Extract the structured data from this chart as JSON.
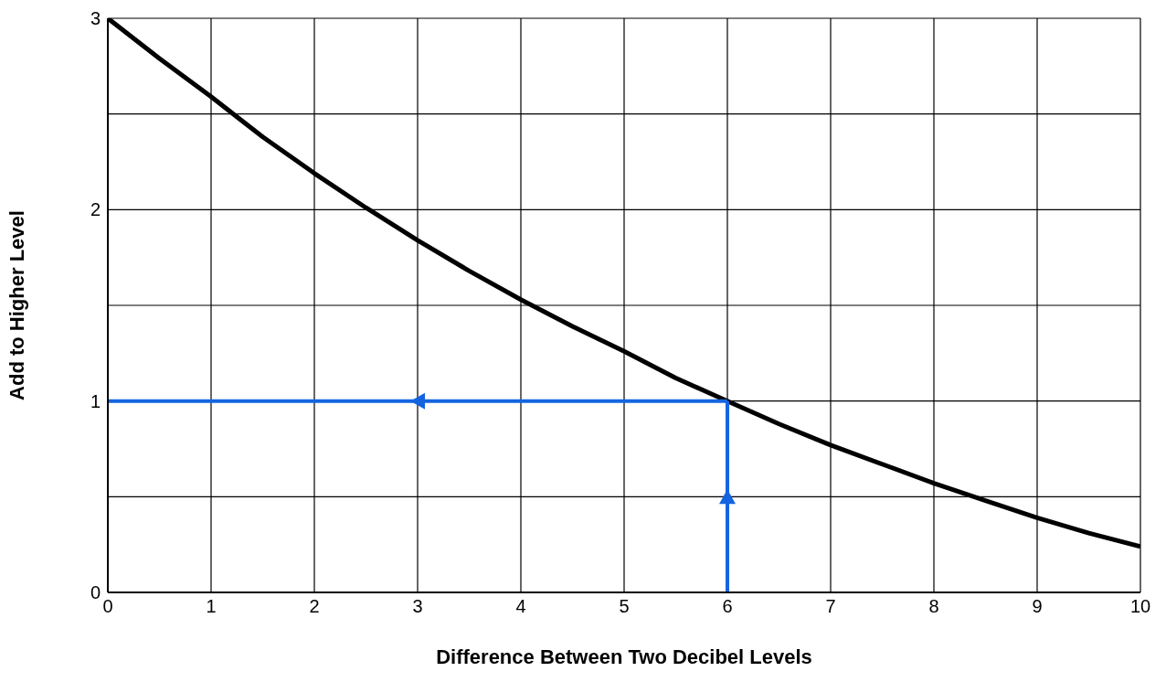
{
  "chart_data": {
    "type": "line",
    "xlabel": "Difference Between Two Decibel Levels",
    "ylabel": "Add to Higher Level",
    "xlim": [
      0,
      10
    ],
    "ylim": [
      0,
      3
    ],
    "xticks": [
      0,
      1,
      2,
      3,
      4,
      5,
      6,
      7,
      8,
      9,
      10
    ],
    "yticks": [
      0,
      {
        "value": 0.5,
        "label": null
      },
      1,
      {
        "value": 1.5,
        "label": null
      },
      2,
      {
        "value": 2.5,
        "label": null
      },
      3
    ],
    "grid": true,
    "marker": "none",
    "line_style": "solid",
    "series": [
      {
        "color": "#000000",
        "x": [
          0,
          0.5,
          1,
          1.5,
          2,
          2.5,
          3,
          3.5,
          4,
          4.5,
          5,
          5.5,
          6,
          6.5,
          7,
          7.5,
          8,
          8.5,
          9,
          9.5,
          10
        ],
        "values": [
          3,
          2.79,
          2.59,
          2.38,
          2.19,
          2.01,
          1.84,
          1.68,
          1.53,
          1.39,
          1.26,
          1.12,
          1,
          0.88,
          0.77,
          0.67,
          0.57,
          0.48,
          0.39,
          0.31,
          0.24
        ]
      },
      {
        "color": "#1464e0",
        "x": [
          6,
          0
        ],
        "values": [
          1,
          1
        ]
      },
      {
        "color": "#1464e0",
        "x": [
          6,
          6
        ],
        "values": [
          0,
          1
        ]
      }
    ]
  }
}
